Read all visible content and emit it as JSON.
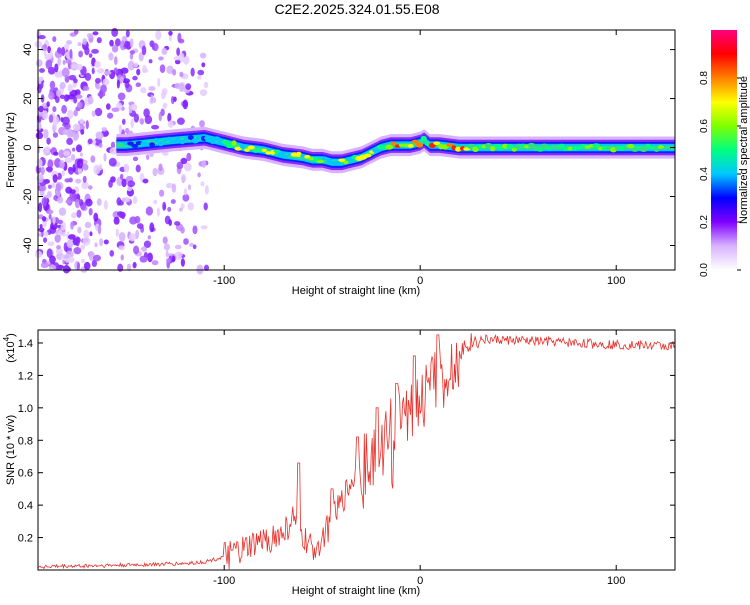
{
  "title": "C2E2.2025.324.01.55.E08",
  "chart_data": [
    {
      "type": "heatmap",
      "title": "C2E2.2025.324.01.55.E08",
      "xlabel": "Height of straight line (km)",
      "ylabel": "Frequency (Hz)",
      "xlim": [
        -195,
        130
      ],
      "ylim": [
        -50,
        48
      ],
      "xticks": [
        -100,
        0,
        100
      ],
      "yticks": [
        40,
        20,
        0,
        -20,
        -40
      ],
      "ytick_labels": [
        "40",
        "20",
        "0",
        "-20",
        "-40"
      ],
      "colorbar": {
        "label": "Normalized spectral amplitude",
        "range": [
          0,
          1
        ],
        "ticks": [
          "0.0",
          "0.2",
          "0.4",
          "0.6",
          "0.8"
        ],
        "colormap": [
          "#ffffff",
          "#d9b3ff",
          "#8000ff",
          "#0000ff",
          "#00c8ff",
          "#00ff80",
          "#80ff00",
          "#ffff00",
          "#ff8000",
          "#ff0000",
          "#ff0080"
        ]
      },
      "ridge": {
        "x": [
          -150,
          -125,
          -110,
          -100,
          -90,
          -80,
          -70,
          -60,
          -55,
          -50,
          -45,
          -40,
          -35,
          -30,
          -25,
          -20,
          -15,
          -10,
          -5,
          0,
          2,
          5,
          10,
          20,
          40,
          60,
          80,
          100,
          130
        ],
        "y": [
          1,
          3,
          4,
          2,
          0,
          -1,
          -3,
          -4,
          -5,
          -5,
          -6,
          -6,
          -5,
          -4,
          -2,
          0,
          1,
          1,
          1,
          2,
          3,
          1,
          1,
          0,
          0,
          0,
          0,
          0,
          0
        ]
      }
    },
    {
      "type": "line",
      "xlabel": "Height of straight line (km)",
      "ylabel": "SNR (10 * v/v)",
      "y_multiplier": "(x10",
      "y_multiplier_exp": "4",
      "y_multiplier_close": ")",
      "xlim": [
        -195,
        130
      ],
      "ylim": [
        0,
        1.48
      ],
      "xticks": [
        -100,
        0,
        100
      ],
      "yticks": [
        0.2,
        0.4,
        0.6,
        0.8,
        1.0,
        1.2,
        1.4
      ],
      "ytick_labels": [
        "0.2",
        "0.4",
        "0.6",
        "0.8",
        "1.0",
        "1.2",
        "1.4"
      ],
      "series": [
        {
          "name": "SNR",
          "color": "#e8302a",
          "envelope_x": [
            -195,
            -150,
            -120,
            -110,
            -100,
            -90,
            -80,
            -70,
            -65,
            -60,
            -55,
            -50,
            -45,
            -40,
            -35,
            -30,
            -25,
            -20,
            -15,
            -10,
            -5,
            0,
            5,
            10,
            15,
            20,
            25,
            30,
            40,
            60,
            80,
            100,
            130
          ],
          "envelope_y": [
            0.02,
            0.03,
            0.04,
            0.05,
            0.08,
            0.12,
            0.18,
            0.22,
            0.32,
            0.2,
            0.12,
            0.2,
            0.3,
            0.42,
            0.55,
            0.65,
            0.7,
            0.78,
            0.85,
            0.95,
            1.0,
            1.05,
            1.1,
            1.2,
            1.28,
            1.35,
            1.4,
            1.42,
            1.42,
            1.41,
            1.4,
            1.39,
            1.38
          ],
          "peaks": [
            {
              "x": -62,
              "y": 0.66
            },
            {
              "x": -45,
              "y": 0.5
            },
            {
              "x": -32,
              "y": 0.82
            },
            {
              "x": -22,
              "y": 1.0
            },
            {
              "x": -12,
              "y": 1.15
            },
            {
              "x": -3,
              "y": 1.32
            },
            {
              "x": 9,
              "y": 1.45
            }
          ]
        }
      ]
    }
  ]
}
